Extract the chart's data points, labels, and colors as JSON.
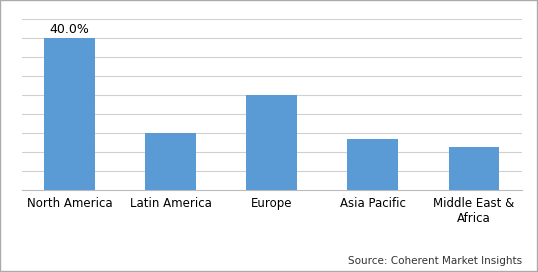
{
  "categories": [
    "North America",
    "Latin America",
    "Europe",
    "Asia Pacific",
    "Middle East &\nAfrica"
  ],
  "values": [
    40.0,
    15.0,
    25.0,
    13.5,
    11.5
  ],
  "bar_color": "#5B9BD5",
  "annotate_bar": 0,
  "annotate_label": "40.0%",
  "ylim": [
    0,
    45
  ],
  "source_text": "Source: Coherent Market Insights",
  "background_color": "#ffffff",
  "grid_color": "#d0d0d0",
  "bar_width": 0.5,
  "label_fontsize": 8.5,
  "annotation_fontsize": 9,
  "source_fontsize": 7.5,
  "border_color": "#aaaaaa",
  "grid_values": [
    5,
    10,
    15,
    20,
    25,
    30,
    35,
    40,
    45
  ]
}
